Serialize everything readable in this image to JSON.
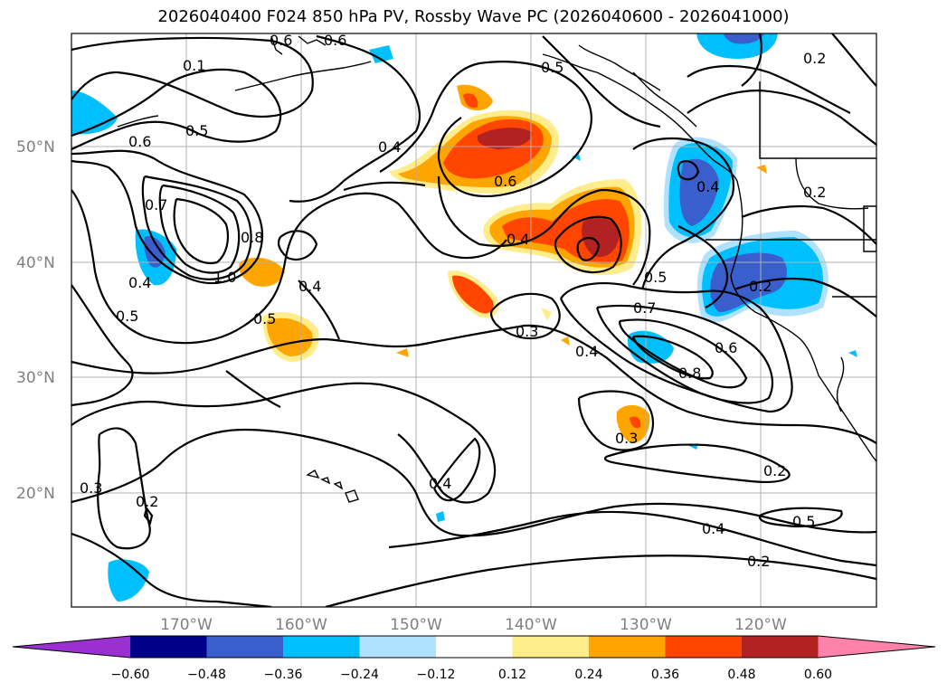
{
  "title": "2026040400 F024 850 hPa PV, Rossby Wave PC (2026040600 - 2026041000)",
  "map": {
    "lat_labels": [
      "50°N",
      "40°N",
      "30°N",
      "20°N"
    ],
    "lon_labels": [
      "170°W",
      "160°W",
      "150°W",
      "140°W",
      "130°W",
      "120°W"
    ],
    "contour_labels": [
      "0.1",
      "0.5",
      "0.6",
      "0.7",
      "0.8",
      "1.0",
      "0.4",
      "0.5",
      "0.4",
      "0.4",
      "0.6",
      "0.5",
      "0.4",
      "0.5",
      "0.7",
      "0.6",
      "0.8",
      "0.3",
      "0.4",
      "0.3",
      "0.4",
      "0.2",
      "0.4",
      "0.2",
      "0.5",
      "0.2",
      "0.3",
      "0.2",
      "0.2",
      "0.6",
      "0.6",
      "0.2",
      "0.5",
      "0.4"
    ],
    "land_color": "#000000",
    "grid_color": "#b0b0b0"
  },
  "colorbar": {
    "tick_labels": [
      "−0.60",
      "−0.48",
      "−0.36",
      "−0.24",
      "−0.12",
      "0.12",
      "0.24",
      "0.36",
      "0.48",
      "0.60"
    ],
    "colors": [
      "#9b30d0",
      "#00008b",
      "#3a5fcd",
      "#00bfff",
      "#b0e2ff",
      "#ffffff",
      "#ffec8b",
      "#ffa500",
      "#ff4500",
      "#b22222",
      "#ff82ab"
    ]
  }
}
